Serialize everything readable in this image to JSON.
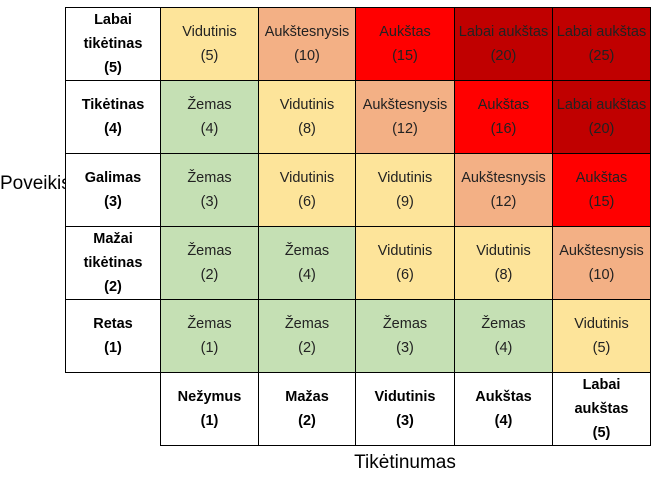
{
  "y_axis_label": "Poveikis",
  "x_axis_label": "Tikėtinumas",
  "rows": [
    {
      "label": [
        "Labai",
        "tikėtinas",
        "(5)"
      ],
      "cells": [
        {
          "level": "Vidutinis",
          "score": "(5)",
          "color": "#fde49a"
        },
        {
          "level": "Aukštesnysis",
          "score": "(10)",
          "color": "#f3b085"
        },
        {
          "level": "Aukštas",
          "score": "(15)",
          "color": "#ff0000"
        },
        {
          "level": "Labai aukštas",
          "score": "(20)",
          "color": "#c00000"
        },
        {
          "level": "Labai aukštas",
          "score": "(25)",
          "color": "#c00000"
        }
      ]
    },
    {
      "label": [
        "Tikėtinas",
        "(4)"
      ],
      "cells": [
        {
          "level": "Žemas",
          "score": "(4)",
          "color": "#c5e0b4"
        },
        {
          "level": "Vidutinis",
          "score": "(8)",
          "color": "#fde49a"
        },
        {
          "level": "Aukštesnysis",
          "score": "(12)",
          "color": "#f3b085"
        },
        {
          "level": "Aukštas",
          "score": "(16)",
          "color": "#ff0000"
        },
        {
          "level": "Labai aukštas",
          "score": "(20)",
          "color": "#c00000"
        }
      ]
    },
    {
      "label": [
        "Galimas",
        "(3)"
      ],
      "cells": [
        {
          "level": "Žemas",
          "score": "(3)",
          "color": "#c5e0b4"
        },
        {
          "level": "Vidutinis",
          "score": "(6)",
          "color": "#fde49a"
        },
        {
          "level": "Vidutinis",
          "score": "(9)",
          "color": "#fde49a"
        },
        {
          "level": "Aukštesnysis",
          "score": "(12)",
          "color": "#f3b085"
        },
        {
          "level": "Aukštas",
          "score": "(15)",
          "color": "#ff0000"
        }
      ]
    },
    {
      "label": [
        "Mažai",
        "tikėtinas",
        "(2)"
      ],
      "cells": [
        {
          "level": "Žemas",
          "score": "(2)",
          "color": "#c5e0b4"
        },
        {
          "level": "Žemas",
          "score": "(4)",
          "color": "#c5e0b4"
        },
        {
          "level": "Vidutinis",
          "score": "(6)",
          "color": "#fde49a"
        },
        {
          "level": "Vidutinis",
          "score": "(8)",
          "color": "#fde49a"
        },
        {
          "level": "Aukštesnysis",
          "score": "(10)",
          "color": "#f3b085"
        }
      ]
    },
    {
      "label": [
        "Retas",
        "(1)"
      ],
      "cells": [
        {
          "level": "Žemas",
          "score": "(1)",
          "color": "#c5e0b4"
        },
        {
          "level": "Žemas",
          "score": "(2)",
          "color": "#c5e0b4"
        },
        {
          "level": "Žemas",
          "score": "(3)",
          "color": "#c5e0b4"
        },
        {
          "level": "Žemas",
          "score": "(4)",
          "color": "#c5e0b4"
        },
        {
          "level": "Vidutinis",
          "score": "(5)",
          "color": "#fde49a"
        }
      ]
    }
  ],
  "columns": [
    {
      "label": [
        "Nežymus",
        "(1)"
      ]
    },
    {
      "label": [
        "Mažas",
        "(2)"
      ]
    },
    {
      "label": [
        "Vidutinis",
        "(3)"
      ]
    },
    {
      "label": [
        "Aukštas",
        "(4)"
      ]
    },
    {
      "label": [
        "Labai",
        "aukštas",
        "(5)"
      ]
    }
  ]
}
